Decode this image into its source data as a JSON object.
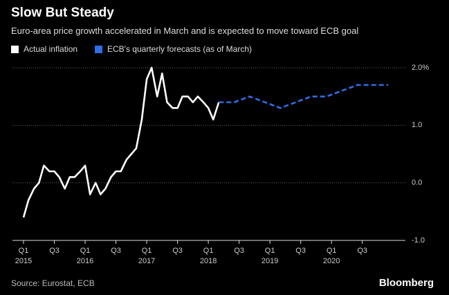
{
  "chart_data": {
    "type": "line",
    "title": "Slow But Steady",
    "subtitle": "Euro-area price growth accelerated in March and is expected to move toward ECB goal",
    "source": "Source: Eurostat, ECB",
    "brand": "Bloomberg",
    "xlim": [
      2014.82,
      2021.2
    ],
    "xticks": [
      {
        "value": 2015,
        "label": "Q1\n2015"
      },
      {
        "value": 2015.5,
        "label": "Q3"
      },
      {
        "value": 2016,
        "label": "Q1\n2016"
      },
      {
        "value": 2016.5,
        "label": "Q3"
      },
      {
        "value": 2017,
        "label": "Q1\n2017"
      },
      {
        "value": 2017.5,
        "label": "Q3"
      },
      {
        "value": 2018,
        "label": "Q1\n2018"
      },
      {
        "value": 2018.5,
        "label": "Q3"
      },
      {
        "value": 2019,
        "label": "Q1\n2019"
      },
      {
        "value": 2019.5,
        "label": "Q3"
      },
      {
        "value": 2020,
        "label": "Q1\n2020"
      },
      {
        "value": 2020.5,
        "label": "Q3"
      }
    ],
    "ylim": [
      -1,
      2
    ],
    "yticks": [
      {
        "value": 2,
        "label": "2.0%"
      },
      {
        "value": 1,
        "label": "1.0"
      },
      {
        "value": 0,
        "label": "0.0"
      },
      {
        "value": -1,
        "label": "-1.0"
      }
    ],
    "grid": true,
    "series": [
      {
        "name": "Actual inflation",
        "color": "#ffffff",
        "dash": false,
        "x": [
          2015,
          2015.08,
          2015.17,
          2015.25,
          2015.33,
          2015.42,
          2015.5,
          2015.58,
          2015.67,
          2015.75,
          2015.83,
          2015.92,
          2016,
          2016.08,
          2016.17,
          2016.25,
          2016.33,
          2016.42,
          2016.5,
          2016.58,
          2016.67,
          2016.75,
          2016.83,
          2016.92,
          2017,
          2017.08,
          2017.17,
          2017.25,
          2017.33,
          2017.42,
          2017.5,
          2017.58,
          2017.67,
          2017.75,
          2017.83,
          2017.92,
          2018,
          2018.08,
          2018.17
        ],
        "values": [
          -0.6,
          -0.3,
          -0.1,
          0.0,
          0.3,
          0.2,
          0.2,
          0.1,
          -0.1,
          0.1,
          0.1,
          0.2,
          0.3,
          -0.2,
          0.0,
          -0.2,
          -0.1,
          0.1,
          0.2,
          0.2,
          0.4,
          0.5,
          0.6,
          1.1,
          1.8,
          2.0,
          1.5,
          1.9,
          1.4,
          1.3,
          1.3,
          1.5,
          1.5,
          1.4,
          1.5,
          1.4,
          1.3,
          1.1,
          1.4
        ]
      },
      {
        "name": "ECB's quarterly forecasts (as of March)",
        "color": "#2e6ee6",
        "dash": true,
        "x": [
          2018.17,
          2018.42,
          2018.67,
          2018.92,
          2019.17,
          2019.42,
          2019.67,
          2019.92,
          2020.17,
          2020.42,
          2020.67,
          2020.92
        ],
        "values": [
          1.4,
          1.4,
          1.5,
          1.4,
          1.3,
          1.4,
          1.5,
          1.5,
          1.6,
          1.7,
          1.7,
          1.7
        ]
      }
    ]
  }
}
